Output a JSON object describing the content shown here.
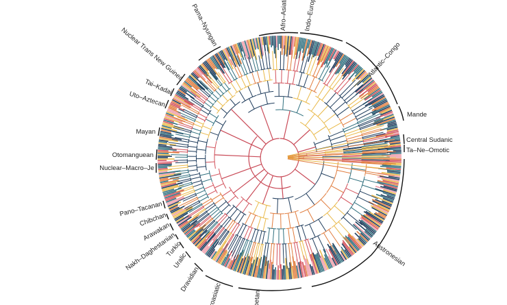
{
  "diagram": {
    "type": "circular-phylogenetic-tree",
    "subject": "language families",
    "colors": {
      "root_edge": "#c94a57",
      "branch_dark": "#1f3c5c",
      "branch_teal": "#2f6f7e",
      "branch_red": "#d2505a",
      "branch_orange": "#e07b3c",
      "branch_yellow": "#e9b949",
      "branch_pink": "#ee9aa8",
      "bracket": "#111111",
      "label": "#222222"
    },
    "families": [
      {
        "label": "Afro–Asiatic"
      },
      {
        "label": "Indo–European"
      },
      {
        "label": "Atlantic–Congo"
      },
      {
        "label": "Mande"
      },
      {
        "label": "Central Sudanic"
      },
      {
        "label": "Ta–Ne–Omotic"
      },
      {
        "label": "Austronesian"
      },
      {
        "label": "Tibetan"
      },
      {
        "label": "Austroasiatic"
      },
      {
        "label": "Dravidian"
      },
      {
        "label": "Uralic"
      },
      {
        "label": "Turkic"
      },
      {
        "label": "Nakh–Daghestanian"
      },
      {
        "label": "Arawakan"
      },
      {
        "label": "Chibchan"
      },
      {
        "label": "Pano–Tacanan"
      },
      {
        "label": "Nuclear–Macro–Je"
      },
      {
        "label": "Otomanguean"
      },
      {
        "label": "Mayan"
      },
      {
        "label": "Uto–Aztecan"
      },
      {
        "label": "Tai–Kadai"
      },
      {
        "label": "Nuclear Trans New Guinea"
      },
      {
        "label": "Pama–Nyungan"
      }
    ]
  }
}
